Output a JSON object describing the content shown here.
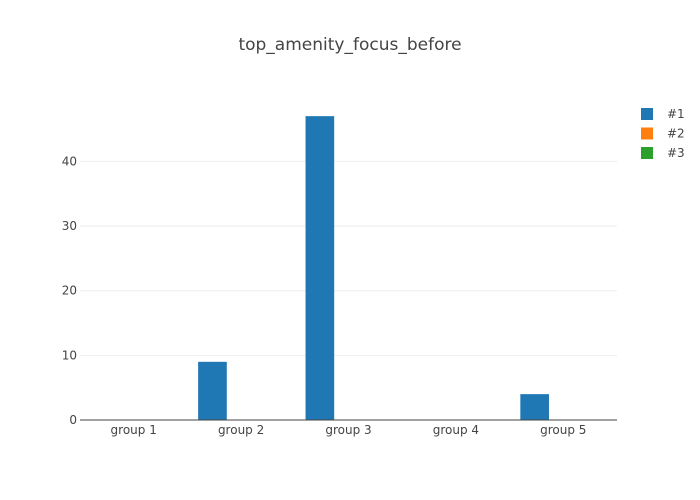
{
  "chart_data": {
    "type": "bar",
    "title": "top_amenity_focus_before",
    "categories": [
      "group 1",
      "group 2",
      "group 3",
      "group 4",
      "group 5"
    ],
    "series": [
      {
        "name": "#1",
        "color": "#1f77b4",
        "values": [
          0,
          9,
          47,
          0,
          4
        ]
      },
      {
        "name": "#2",
        "color": "#ff7f0e",
        "values": [
          0,
          0,
          0,
          0,
          0
        ]
      },
      {
        "name": "#3",
        "color": "#2ca02c",
        "values": [
          0,
          0,
          0,
          0,
          0
        ]
      }
    ],
    "yticks": [
      0,
      10,
      20,
      30,
      40
    ],
    "ylim": [
      0,
      49.5
    ],
    "xlabel": "",
    "ylabel": "",
    "grid": true,
    "legend_position": "top-right"
  }
}
